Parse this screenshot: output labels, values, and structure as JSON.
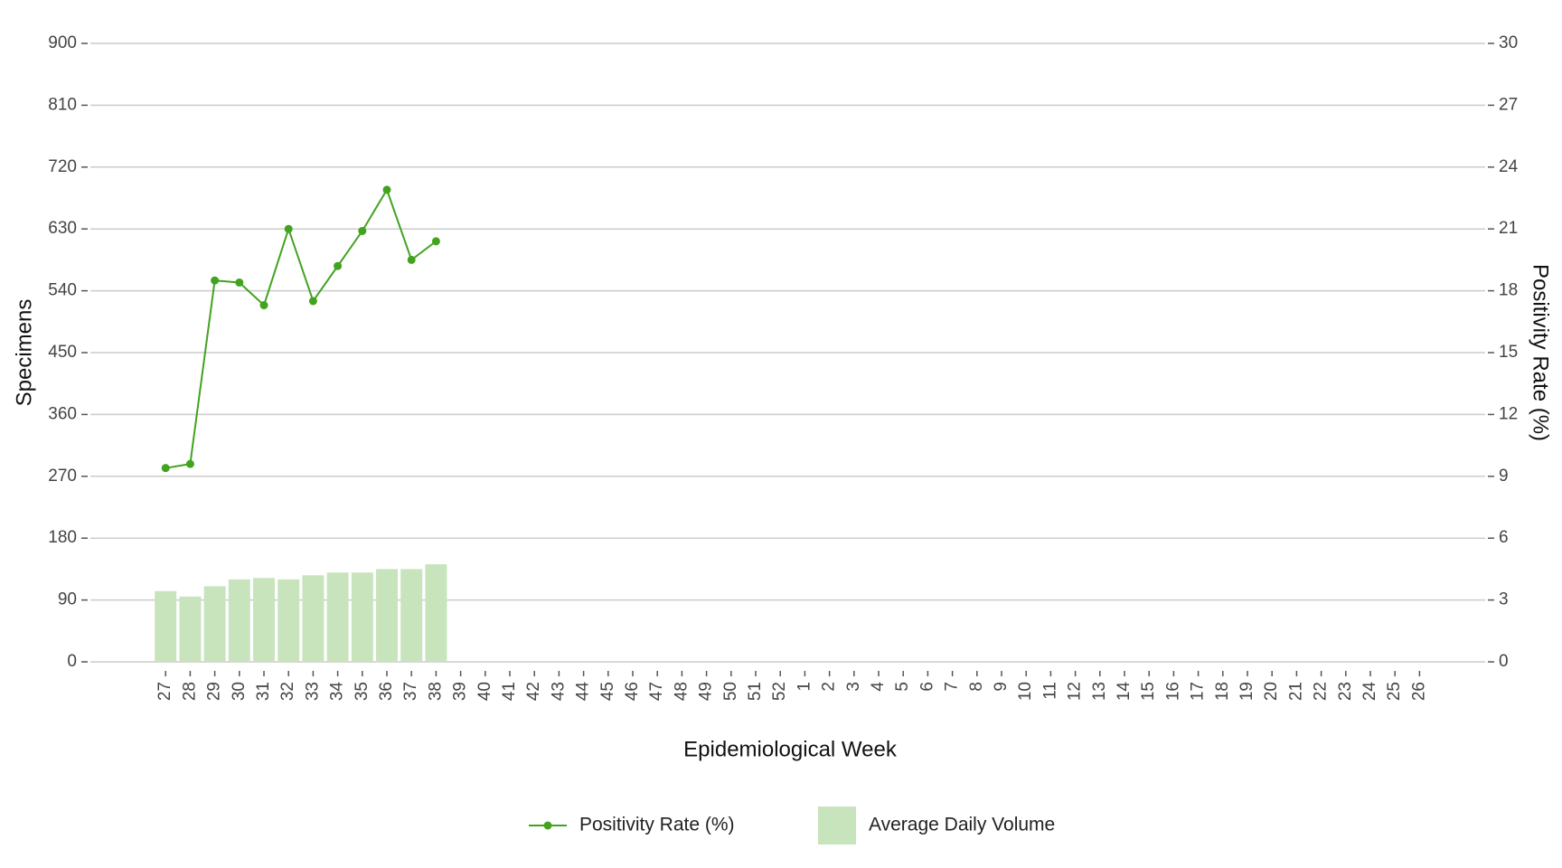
{
  "chart_data": {
    "type": "bar-line",
    "x_label": "Epidemiological Week",
    "y_label": "Specimens",
    "y2_label": "Positivity Rate (%)",
    "categories": [
      "27",
      "28",
      "29",
      "30",
      "31",
      "32",
      "33",
      "34",
      "35",
      "36",
      "37",
      "38",
      "39",
      "40",
      "41",
      "42",
      "43",
      "44",
      "45",
      "46",
      "47",
      "48",
      "49",
      "50",
      "51",
      "52",
      "1",
      "2",
      "3",
      "4",
      "5",
      "6",
      "7",
      "8",
      "9",
      "10",
      "11",
      "12",
      "13",
      "14",
      "15",
      "16",
      "17",
      "18",
      "19",
      "20",
      "21",
      "22",
      "23",
      "24",
      "25",
      "26"
    ],
    "series": [
      {
        "name": "Positivity Rate (%)",
        "type": "line",
        "axis": "y2",
        "color": "#41a31f",
        "values": [
          9.4,
          9.6,
          18.5,
          18.4,
          17.3,
          21.0,
          17.5,
          19.2,
          20.9,
          22.9,
          19.5,
          20.4,
          null,
          null,
          null,
          null,
          null,
          null,
          null,
          null,
          null,
          null,
          null,
          null,
          null,
          null,
          null,
          null,
          null,
          null,
          null,
          null,
          null,
          null,
          null,
          null,
          null,
          null,
          null,
          null,
          null,
          null,
          null,
          null,
          null,
          null,
          null,
          null,
          null,
          null,
          null,
          null
        ]
      },
      {
        "name": "Average Daily Volume",
        "type": "bar",
        "color": "#c7e4bc",
        "values": [
          103,
          95,
          110,
          120,
          122,
          120,
          126,
          130,
          130,
          135,
          135,
          142,
          null,
          null,
          null,
          null,
          null,
          null,
          null,
          null,
          null,
          null,
          null,
          null,
          null,
          null,
          null,
          null,
          null,
          null,
          null,
          null,
          null,
          null,
          null,
          null,
          null,
          null,
          null,
          null,
          null,
          null,
          null,
          null,
          null,
          null,
          null,
          null,
          null,
          null,
          null,
          null
        ]
      }
    ],
    "ylim": [
      0,
      900
    ],
    "yticks": [
      0,
      90,
      180,
      270,
      360,
      450,
      540,
      630,
      720,
      810,
      900
    ],
    "y2lim": [
      0,
      30
    ],
    "y2ticks": [
      0,
      3,
      6,
      9,
      12,
      15,
      18,
      21,
      24,
      27,
      30
    ],
    "grid": true,
    "legend": "bottom"
  }
}
